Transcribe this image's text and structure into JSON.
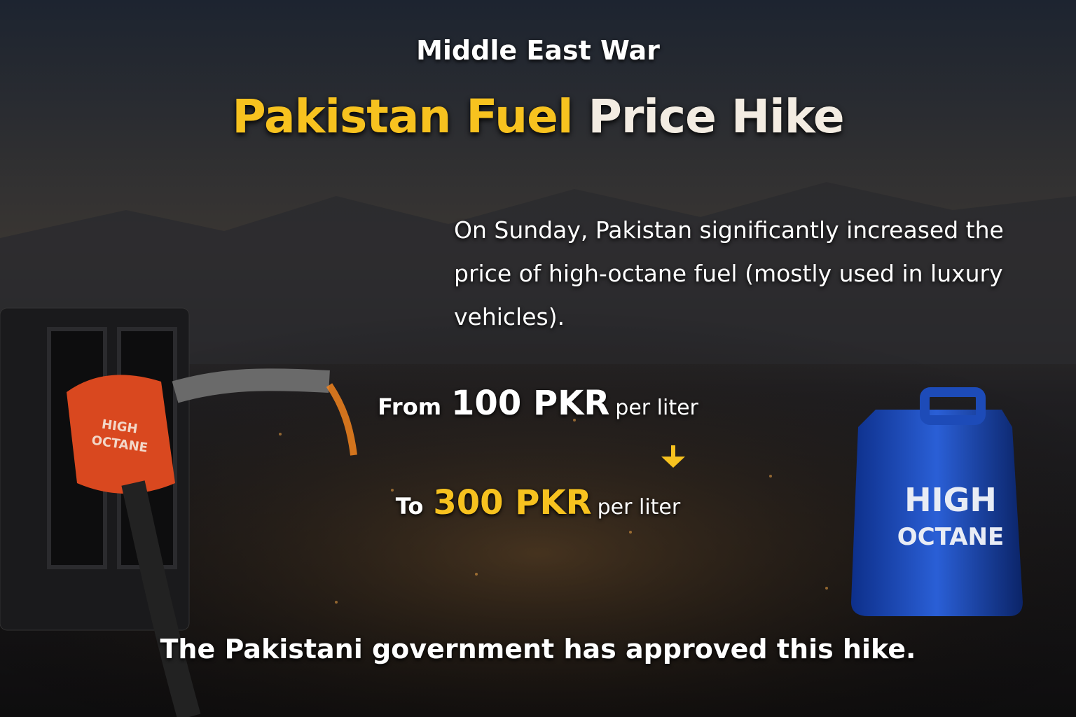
{
  "header": {
    "kicker": "Middle East War",
    "title_highlight": "Pakistan Fuel",
    "title_rest": "Price Hike"
  },
  "body": {
    "text": "On Sunday, Pakistan significantly increased the price of high-octane fuel (mostly used in luxury vehicles)."
  },
  "price_change": {
    "from": {
      "prefix": "From",
      "amount": "100 PKR",
      "unit": "per liter"
    },
    "to": {
      "prefix": "To",
      "amount": "300 PKR",
      "unit": "per liter"
    }
  },
  "footer": {
    "text": "The Pakistani government has approved this hike."
  },
  "illustrations": {
    "nozzle_label": [
      "HIGH",
      "OCTANE"
    ],
    "can_label": [
      "HIGH",
      "OCTANE"
    ]
  }
}
